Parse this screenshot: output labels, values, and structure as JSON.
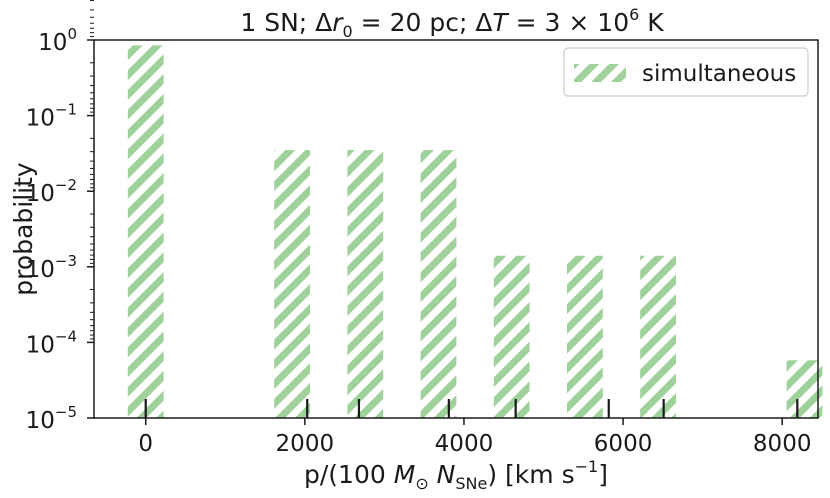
{
  "chart_data": {
    "type": "bar",
    "title_parts": {
      "a": "1 SN; Δ",
      "b": "r",
      "c": "0",
      "d": " = 20 pc; Δ",
      "e": "T",
      "f": " = 3 × 10",
      "g": "6",
      "h": " K"
    },
    "xlabel_parts": {
      "a": "p/(100 ",
      "b": "M",
      "c": "⊙",
      "d": " N",
      "e": "SNe",
      "f": ") [km s",
      "g": "−1",
      "h": "]"
    },
    "ylabel": "probability",
    "xlim": [
      -650,
      8450
    ],
    "ylim_log10": [
      -5,
      0
    ],
    "y_scale": "log",
    "x_ticks": [
      0,
      2000,
      4000,
      6000,
      8000
    ],
    "x_tick_labels": [
      "0",
      "2000",
      "4000",
      "6000",
      "8000"
    ],
    "y_ticks_log10": [
      0,
      -1,
      -2,
      -3,
      -4,
      -5
    ],
    "y_tick_base": "10",
    "y_tick_exponents": [
      "0",
      "−1",
      "−2",
      "−3",
      "−4",
      "−5"
    ],
    "bar_width": 450,
    "bars": [
      {
        "x": 0,
        "value": 0.85
      },
      {
        "x": 1840,
        "value": 0.035
      },
      {
        "x": 2760,
        "value": 0.035
      },
      {
        "x": 3680,
        "value": 0.035
      },
      {
        "x": 4600,
        "value": 0.0014
      },
      {
        "x": 5520,
        "value": 0.0014
      },
      {
        "x": 6440,
        "value": 0.0014
      },
      {
        "x": 8280,
        "value": 5.8e-05
      }
    ],
    "rug_x": [
      0,
      2030,
      2680,
      3810,
      4650,
      5820,
      6510,
      8190
    ],
    "series": [
      {
        "name": "simultaneous",
        "color": "#9fd19a",
        "hatch": "diagonal"
      }
    ],
    "legend_position": "top-right",
    "grid": false
  }
}
